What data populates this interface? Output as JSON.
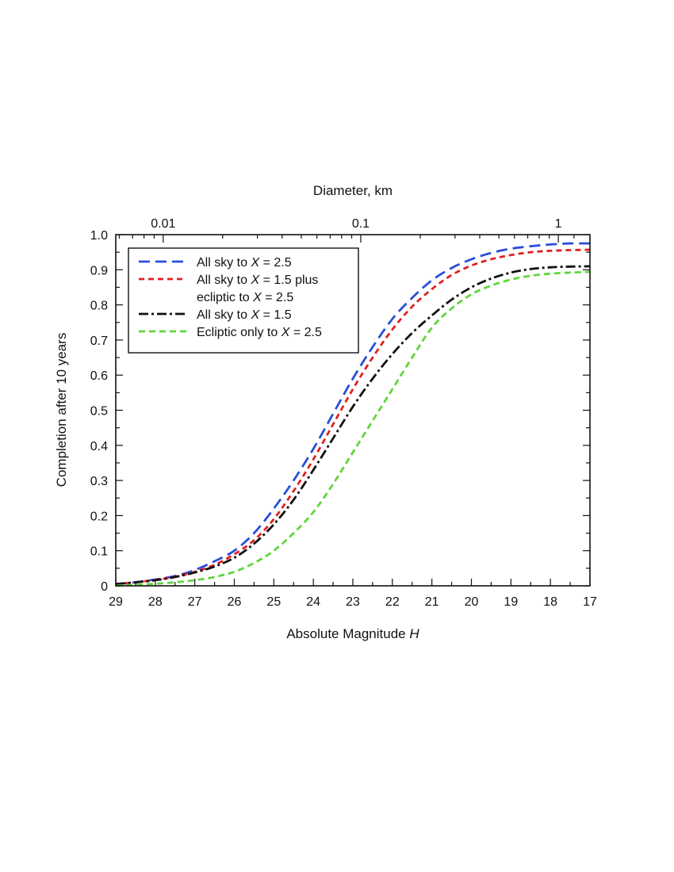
{
  "chart_data": {
    "type": "line",
    "title": "",
    "xlabel": "Absolute Magnitude",
    "xlabel_italic": "H",
    "ylabel": "Completion after 10 years",
    "top_axis_label": "Diameter, km",
    "top_ticks": [
      {
        "label": "0.01",
        "H": 27.8
      },
      {
        "label": "0.1",
        "H": 22.8
      },
      {
        "label": "1",
        "H": 17.8
      }
    ],
    "x_ticks": [
      29,
      28,
      27,
      26,
      25,
      24,
      23,
      22,
      21,
      20,
      19,
      18,
      17
    ],
    "y_ticks": [
      "0",
      "0.1",
      "0.2",
      "0.3",
      "0.4",
      "0.5",
      "0.6",
      "0.7",
      "0.8",
      "0.9",
      "1.0"
    ],
    "xlim": [
      29,
      17
    ],
    "ylim": [
      0,
      1.0
    ],
    "x": [
      29,
      28.5,
      28,
      27.5,
      27,
      26.5,
      26,
      25.5,
      25,
      24.5,
      24,
      23.5,
      23,
      22.5,
      22,
      21.5,
      21,
      20.5,
      20,
      19.5,
      19,
      18.5,
      18,
      17.5,
      17
    ],
    "series": [
      {
        "name": "All sky to X = 2.5",
        "legend": {
          "pre": "All sky to ",
          "var": "X",
          "post": " = 2.5"
        },
        "color": "#2a4fd8",
        "dash": "14 7",
        "values": [
          0.005,
          0.01,
          0.018,
          0.028,
          0.045,
          0.07,
          0.1,
          0.15,
          0.22,
          0.3,
          0.39,
          0.49,
          0.59,
          0.68,
          0.76,
          0.82,
          0.87,
          0.905,
          0.93,
          0.948,
          0.96,
          0.967,
          0.972,
          0.975,
          0.975
        ]
      },
      {
        "name": "All sky to X = 1.5 plus ecliptic to X = 2.5",
        "legend": {
          "pre": "All sky to ",
          "var": "X",
          "post": " = 1.5 plus",
          "line2": "ecliptic to X = 2.5"
        },
        "color": "#e02020",
        "dash": "7 5",
        "values": [
          0.005,
          0.01,
          0.017,
          0.026,
          0.04,
          0.06,
          0.09,
          0.13,
          0.19,
          0.27,
          0.36,
          0.46,
          0.56,
          0.65,
          0.73,
          0.795,
          0.845,
          0.885,
          0.912,
          0.93,
          0.942,
          0.95,
          0.954,
          0.956,
          0.957
        ]
      },
      {
        "name": "All sky to X = 1.5",
        "legend": {
          "pre": "All sky to ",
          "var": "X",
          "post": " = 1.5"
        },
        "color": "#111111",
        "dash": "12 4 3 4",
        "values": [
          0.005,
          0.01,
          0.016,
          0.025,
          0.038,
          0.055,
          0.08,
          0.12,
          0.175,
          0.245,
          0.33,
          0.42,
          0.51,
          0.59,
          0.66,
          0.72,
          0.77,
          0.815,
          0.85,
          0.875,
          0.892,
          0.902,
          0.907,
          0.909,
          0.91
        ]
      },
      {
        "name": "Ecliptic only to X = 2.5",
        "legend": {
          "pre": "Ecliptic only to ",
          "var": "X",
          "post": " = 2.5"
        },
        "color": "#5fd63a",
        "dash": "8 5",
        "values": [
          0.0,
          0.003,
          0.006,
          0.01,
          0.016,
          0.025,
          0.04,
          0.065,
          0.1,
          0.15,
          0.21,
          0.29,
          0.38,
          0.47,
          0.56,
          0.65,
          0.735,
          0.79,
          0.83,
          0.855,
          0.872,
          0.883,
          0.889,
          0.892,
          0.894
        ]
      }
    ]
  }
}
